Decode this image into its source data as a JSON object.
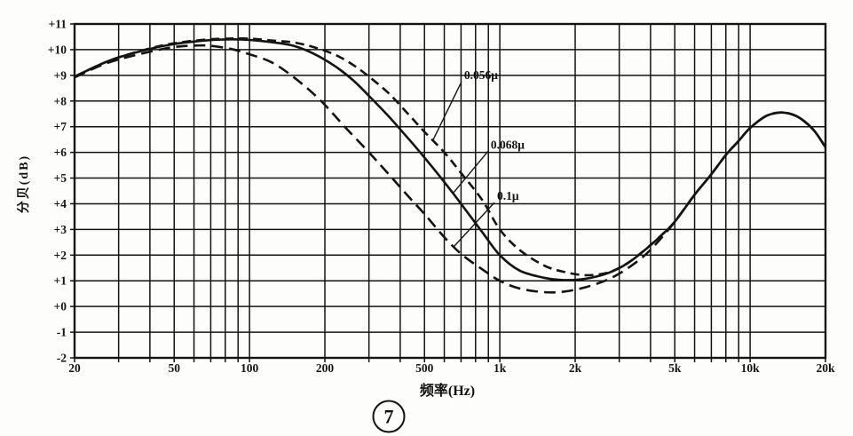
{
  "figure": {
    "number": "7",
    "x_axis_label": "频率(Hz)",
    "y_axis_label": "分贝(dB)"
  },
  "chart_data": {
    "type": "line",
    "title": "",
    "xlabel": "频率(Hz)",
    "ylabel": "分贝(dB)",
    "x_scale": "log",
    "x_range": [
      20,
      20000
    ],
    "y_range": [
      -2,
      11
    ],
    "grid": "on",
    "legend_position": "inline-annotations",
    "ink_color": "#141414",
    "background_color": "#fdfdfb",
    "x_ticks": [
      {
        "v": 20,
        "label": "20"
      },
      {
        "v": 50,
        "label": "50"
      },
      {
        "v": 100,
        "label": "100"
      },
      {
        "v": 200,
        "label": "200"
      },
      {
        "v": 500,
        "label": "500"
      },
      {
        "v": 1000,
        "label": "1k"
      },
      {
        "v": 2000,
        "label": "2k"
      },
      {
        "v": 5000,
        "label": "5k"
      },
      {
        "v": 10000,
        "label": "10k"
      },
      {
        "v": 20000,
        "label": "20k"
      }
    ],
    "y_ticks": [
      {
        "v": 11,
        "label": "+11"
      },
      {
        "v": 10,
        "label": "+10"
      },
      {
        "v": 9,
        "label": "+9"
      },
      {
        "v": 8,
        "label": "+8"
      },
      {
        "v": 7,
        "label": "+7"
      },
      {
        "v": 6,
        "label": "+6"
      },
      {
        "v": 5,
        "label": "+5"
      },
      {
        "v": 4,
        "label": "+4"
      },
      {
        "v": 3,
        "label": "+3"
      },
      {
        "v": 2,
        "label": "+2"
      },
      {
        "v": 1,
        "label": "+1"
      },
      {
        "v": 0,
        "label": "+0"
      },
      {
        "v": -1,
        "label": "-1"
      },
      {
        "v": -2,
        "label": "-2"
      }
    ],
    "x_grid_values": [
      20,
      30,
      40,
      50,
      60,
      70,
      80,
      90,
      100,
      200,
      300,
      400,
      500,
      600,
      700,
      800,
      900,
      1000,
      2000,
      3000,
      4000,
      5000,
      6000,
      7000,
      8000,
      9000,
      10000,
      20000
    ],
    "series": [
      {
        "name": "0.056μ",
        "slug": "curve-0-056u",
        "style": "dashed",
        "dash": "10 6",
        "points": [
          [
            20,
            8.95
          ],
          [
            25,
            9.4
          ],
          [
            30,
            9.7
          ],
          [
            40,
            10.05
          ],
          [
            50,
            10.25
          ],
          [
            65,
            10.38
          ],
          [
            80,
            10.43
          ],
          [
            100,
            10.43
          ],
          [
            125,
            10.35
          ],
          [
            150,
            10.28
          ],
          [
            180,
            10.1
          ],
          [
            220,
            9.8
          ],
          [
            260,
            9.4
          ],
          [
            300,
            8.95
          ],
          [
            360,
            8.3
          ],
          [
            430,
            7.5
          ],
          [
            500,
            6.8
          ],
          [
            600,
            6.0
          ],
          [
            700,
            5.2
          ],
          [
            850,
            4.15
          ],
          [
            1000,
            3.0
          ],
          [
            1200,
            2.2
          ],
          [
            1500,
            1.6
          ],
          [
            1800,
            1.35
          ],
          [
            2200,
            1.22
          ],
          [
            2700,
            1.32
          ],
          [
            3200,
            1.66
          ],
          [
            3800,
            2.21
          ],
          [
            4400,
            2.76
          ],
          [
            5000,
            3.3
          ],
          [
            6000,
            4.35
          ],
          [
            7000,
            5.15
          ],
          [
            8000,
            5.9
          ],
          [
            9000,
            6.45
          ],
          [
            10000,
            6.95
          ],
          [
            11500,
            7.4
          ],
          [
            13000,
            7.55
          ],
          [
            14500,
            7.5
          ],
          [
            16000,
            7.3
          ],
          [
            18000,
            6.85
          ],
          [
            20000,
            6.2
          ]
        ]
      },
      {
        "name": "0.068μ",
        "slug": "curve-0-068u",
        "style": "solid",
        "dash": "",
        "points": [
          [
            20,
            8.95
          ],
          [
            25,
            9.4
          ],
          [
            30,
            9.7
          ],
          [
            40,
            10.03
          ],
          [
            50,
            10.22
          ],
          [
            65,
            10.35
          ],
          [
            80,
            10.4
          ],
          [
            100,
            10.38
          ],
          [
            125,
            10.28
          ],
          [
            150,
            10.15
          ],
          [
            180,
            9.85
          ],
          [
            220,
            9.35
          ],
          [
            260,
            8.8
          ],
          [
            300,
            8.2
          ],
          [
            360,
            7.4
          ],
          [
            430,
            6.55
          ],
          [
            500,
            5.8
          ],
          [
            600,
            4.85
          ],
          [
            700,
            4.0
          ],
          [
            850,
            2.9
          ],
          [
            1000,
            2.0
          ],
          [
            1200,
            1.4
          ],
          [
            1500,
            1.12
          ],
          [
            1800,
            1.03
          ],
          [
            2200,
            1.08
          ],
          [
            2700,
            1.3
          ],
          [
            3200,
            1.65
          ],
          [
            3800,
            2.2
          ],
          [
            4400,
            2.75
          ],
          [
            5000,
            3.3
          ],
          [
            6000,
            4.35
          ],
          [
            7000,
            5.15
          ],
          [
            8000,
            5.9
          ],
          [
            9000,
            6.45
          ],
          [
            10000,
            6.95
          ],
          [
            11500,
            7.4
          ],
          [
            13000,
            7.55
          ],
          [
            14500,
            7.5
          ],
          [
            16000,
            7.3
          ],
          [
            18000,
            6.85
          ],
          [
            20000,
            6.2
          ]
        ]
      },
      {
        "name": "0.1μ",
        "slug": "curve-0-1u",
        "style": "dashed",
        "dash": "13 7",
        "points": [
          [
            20,
            8.92
          ],
          [
            25,
            9.35
          ],
          [
            30,
            9.62
          ],
          [
            40,
            9.92
          ],
          [
            50,
            10.1
          ],
          [
            60,
            10.16
          ],
          [
            70,
            10.15
          ],
          [
            85,
            10.02
          ],
          [
            100,
            9.82
          ],
          [
            120,
            9.55
          ],
          [
            140,
            9.15
          ],
          [
            170,
            8.5
          ],
          [
            200,
            7.85
          ],
          [
            240,
            7.0
          ],
          [
            300,
            6.0
          ],
          [
            360,
            5.15
          ],
          [
            430,
            4.3
          ],
          [
            500,
            3.6
          ],
          [
            600,
            2.7
          ],
          [
            700,
            2.05
          ],
          [
            850,
            1.45
          ],
          [
            1000,
            1.0
          ],
          [
            1200,
            0.7
          ],
          [
            1500,
            0.56
          ],
          [
            1800,
            0.58
          ],
          [
            2200,
            0.75
          ],
          [
            2700,
            1.05
          ],
          [
            3200,
            1.45
          ],
          [
            3800,
            2.0
          ],
          [
            4400,
            2.65
          ],
          [
            5000,
            3.3
          ],
          [
            6000,
            4.35
          ],
          [
            7000,
            5.15
          ],
          [
            8000,
            5.9
          ],
          [
            9000,
            6.45
          ],
          [
            10000,
            6.95
          ],
          [
            11500,
            7.4
          ],
          [
            13000,
            7.55
          ],
          [
            14500,
            7.5
          ],
          [
            16000,
            7.3
          ],
          [
            18000,
            6.85
          ],
          [
            20000,
            6.2
          ]
        ]
      }
    ],
    "annotations": [
      {
        "text": "0.056μ",
        "series": 0,
        "label_f": 720,
        "label_db": 8.85,
        "tip_f": 540
      },
      {
        "text": "0.068μ",
        "series": 1,
        "label_f": 920,
        "label_db": 6.15,
        "tip_f": 650
      },
      {
        "text": "0.1μ",
        "series": 2,
        "label_f": 975,
        "label_db": 4.15,
        "tip_f": 655
      }
    ]
  }
}
